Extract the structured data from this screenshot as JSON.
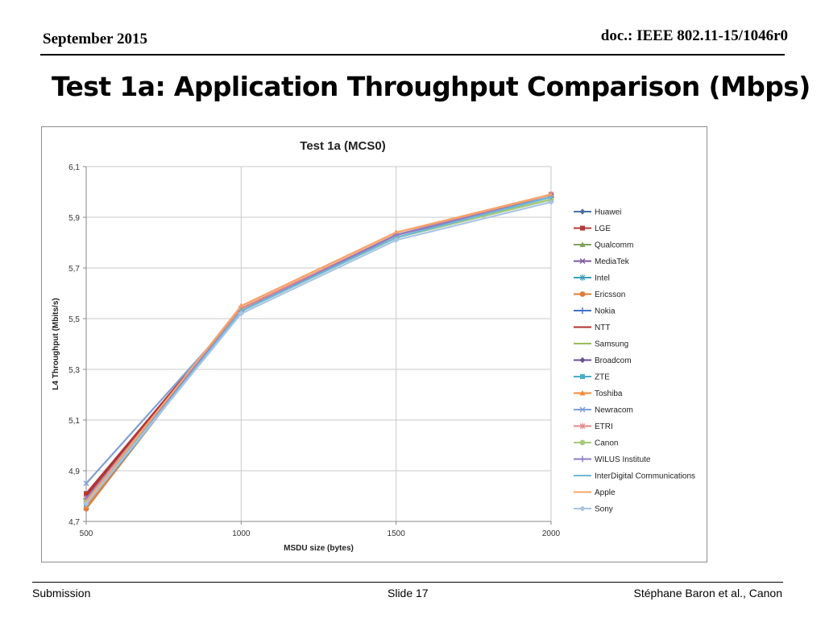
{
  "header": {
    "date": "September 2015",
    "doc": "doc.: IEEE 802.11-15/1046r0"
  },
  "slide": {
    "title": "Test 1a: Application Throughput Comparison (Mbps)"
  },
  "footer": {
    "left": "Submission",
    "center": "Slide 17",
    "right": "Stéphane Baron et al., Canon"
  },
  "chart_data": {
    "type": "line",
    "title": "Test 1a (MCS0)",
    "xlabel": "MSDU size (bytes)",
    "ylabel": "L4 Throughput (Mbits/s)",
    "x": [
      500,
      1000,
      1500,
      2000
    ],
    "x_tick_labels": [
      "500",
      "1000",
      "1500",
      "2000"
    ],
    "ylim": [
      4.7,
      6.1
    ],
    "y_ticks": [
      4.7,
      4.9,
      5.1,
      5.3,
      5.5,
      5.7,
      5.9,
      6.1
    ],
    "y_tick_labels": [
      "4,7",
      "4,9",
      "5,1",
      "5,3",
      "5,5",
      "5,7",
      "5,9",
      "6,1"
    ],
    "grid": true,
    "legend_position": "right",
    "series": [
      {
        "name": "Huawei",
        "values": [
          4.78,
          5.53,
          5.83,
          5.99
        ],
        "color": "#4a6fa5",
        "marker": "diamond"
      },
      {
        "name": "LGE",
        "values": [
          4.81,
          5.54,
          5.83,
          5.98
        ],
        "color": "#b23a3a",
        "marker": "square"
      },
      {
        "name": "Qualcomm",
        "values": [
          4.78,
          5.53,
          5.82,
          5.97
        ],
        "color": "#7fa05a",
        "marker": "triangle"
      },
      {
        "name": "MediaTek",
        "values": [
          4.79,
          5.53,
          5.83,
          5.98
        ],
        "color": "#7c5aa0",
        "marker": "x"
      },
      {
        "name": "Intel",
        "values": [
          4.78,
          5.53,
          5.82,
          5.98
        ],
        "color": "#3d9fb8",
        "marker": "star"
      },
      {
        "name": "Ericsson",
        "values": [
          4.75,
          5.54,
          5.83,
          5.99
        ],
        "color": "#e07b39",
        "marker": "circle"
      },
      {
        "name": "Nokia",
        "values": [
          4.79,
          5.53,
          5.82,
          5.98
        ],
        "color": "#4472c4",
        "marker": "plus"
      },
      {
        "name": "NTT",
        "values": [
          4.8,
          5.54,
          5.83,
          5.98
        ],
        "color": "#b03030",
        "marker": "none"
      },
      {
        "name": "Samsung",
        "values": [
          4.77,
          5.53,
          5.82,
          5.97
        ],
        "color": "#9bbb59",
        "marker": "none"
      },
      {
        "name": "Broadcom",
        "values": [
          4.78,
          5.53,
          5.83,
          5.99
        ],
        "color": "#6a4f94",
        "marker": "diamond"
      },
      {
        "name": "ZTE",
        "values": [
          4.76,
          5.53,
          5.83,
          5.98
        ],
        "color": "#4bacc6",
        "marker": "square"
      },
      {
        "name": "Toshiba",
        "values": [
          4.76,
          5.55,
          5.84,
          5.99
        ],
        "color": "#f28a3c",
        "marker": "triangle"
      },
      {
        "name": "Newracom",
        "values": [
          4.85,
          5.53,
          5.83,
          5.99
        ],
        "color": "#7f9fd4",
        "marker": "x"
      },
      {
        "name": "ETRI",
        "values": [
          4.79,
          5.54,
          5.83,
          5.99
        ],
        "color": "#e08a8a",
        "marker": "star"
      },
      {
        "name": "Canon",
        "values": [
          4.78,
          5.53,
          5.82,
          5.97
        ],
        "color": "#a6c97a",
        "marker": "circle"
      },
      {
        "name": "WILUS Institute",
        "values": [
          4.79,
          5.53,
          5.83,
          5.98
        ],
        "color": "#8e7cc3",
        "marker": "plus"
      },
      {
        "name": "InterDigital Communications",
        "values": [
          4.77,
          5.53,
          5.82,
          5.98
        ],
        "color": "#6fb8d6",
        "marker": "none"
      },
      {
        "name": "Apple",
        "values": [
          4.78,
          5.55,
          5.84,
          5.99
        ],
        "color": "#f5a46b",
        "marker": "none"
      },
      {
        "name": "Sony",
        "values": [
          4.77,
          5.52,
          5.81,
          5.96
        ],
        "color": "#a9c4e4",
        "marker": "diamond"
      }
    ]
  }
}
